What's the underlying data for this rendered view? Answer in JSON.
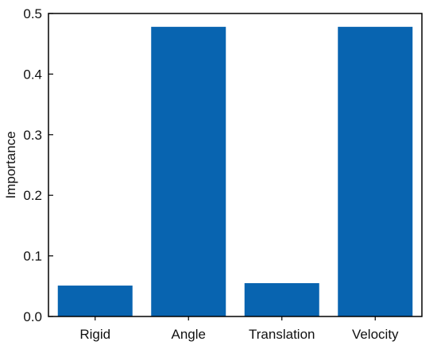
{
  "chart_data": {
    "type": "bar",
    "categories": [
      "Rigid",
      "Angle",
      "Translation",
      "Velocity"
    ],
    "values": [
      0.051,
      0.478,
      0.055,
      0.478
    ],
    "title": "",
    "xlabel": "",
    "ylabel": "Importance",
    "ylim": [
      0,
      0.5
    ],
    "yticks": [
      "0.0",
      "0.1",
      "0.2",
      "0.3",
      "0.4",
      "0.5"
    ],
    "bar_color": "#0864b0",
    "grid": false,
    "legend": "none"
  }
}
